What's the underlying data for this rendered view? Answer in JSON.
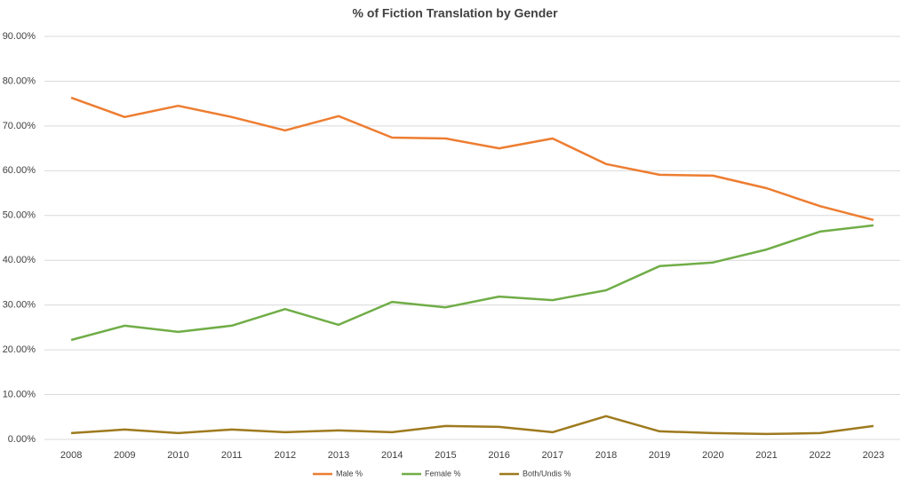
{
  "chart_data": {
    "type": "line",
    "title": "% of Fiction Translation by Gender",
    "categories": [
      "2008",
      "2009",
      "2010",
      "2011",
      "2012",
      "2013",
      "2014",
      "2015",
      "2016",
      "2017",
      "2018",
      "2019",
      "2020",
      "2021",
      "2022",
      "2023"
    ],
    "series": [
      {
        "name": "Male %",
        "color": "#ed7d31",
        "values": [
          76.3,
          72.0,
          74.5,
          72.0,
          69.0,
          72.2,
          67.4,
          67.2,
          65.0,
          67.2,
          61.5,
          59.1,
          58.9,
          56.1,
          52.1,
          49.0
        ]
      },
      {
        "name": "Female %",
        "color": "#70ad47",
        "values": [
          22.2,
          25.4,
          24.0,
          25.4,
          29.1,
          25.6,
          30.7,
          29.5,
          31.9,
          31.1,
          33.3,
          38.7,
          39.5,
          42.4,
          46.4,
          47.8
        ]
      },
      {
        "name": "Both/Undis %",
        "color": "#9e7a1e",
        "values": [
          1.4,
          2.2,
          1.4,
          2.2,
          1.6,
          2.0,
          1.6,
          3.0,
          2.8,
          1.6,
          5.2,
          1.8,
          1.4,
          1.2,
          1.4,
          3.0
        ]
      }
    ],
    "ylim": [
      0,
      90
    ],
    "yticks": [
      {
        "value": 0,
        "label": "0.00%"
      },
      {
        "value": 10,
        "label": "10.00%"
      },
      {
        "value": 20,
        "label": "20.00%"
      },
      {
        "value": 30,
        "label": "30.00%"
      },
      {
        "value": 40,
        "label": "40.00%"
      },
      {
        "value": 50,
        "label": "50.00%"
      },
      {
        "value": 60,
        "label": "60.00%"
      },
      {
        "value": 70,
        "label": "70.00%"
      },
      {
        "value": 80,
        "label": "80.00%"
      },
      {
        "value": 90,
        "label": "90.00%"
      }
    ],
    "grid": true,
    "legend": "bottom"
  }
}
